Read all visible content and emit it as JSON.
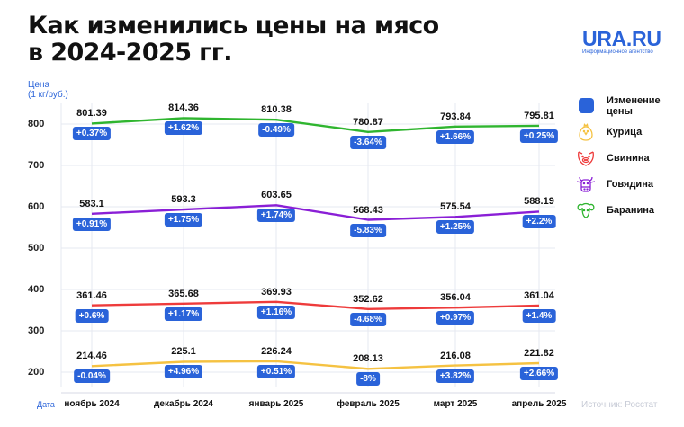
{
  "header": {
    "title_line1": "Как изменились цены на мясо",
    "title_line2": "в 2024-2025 гг."
  },
  "logo": {
    "name": "URA.RU",
    "tagline": "Информационное агентство"
  },
  "axis": {
    "y_label_line1": "Цена",
    "y_label_line2": "(1 кг/руб.)",
    "x_label": "Дата",
    "y_ticks": [
      "800",
      "700",
      "600",
      "500",
      "400",
      "300",
      "200"
    ],
    "x_ticks": [
      "ноябрь 2024",
      "декабрь 2024",
      "январь 2025",
      "февраль 2025",
      "март 2025",
      "апрель 2025"
    ]
  },
  "source": "Источник: Росстат",
  "legend": {
    "items": [
      {
        "label": "Изменение цены",
        "icon": "square-icon",
        "color": "#2a63d9"
      },
      {
        "label": "Курица",
        "icon": "chicken-icon",
        "color": "#f5c242"
      },
      {
        "label": "Свинина",
        "icon": "pig-icon",
        "color": "#ee3b3b"
      },
      {
        "label": "Говядина",
        "icon": "cow-icon",
        "color": "#8a1fd6"
      },
      {
        "label": "Баранина",
        "icon": "ram-icon",
        "color": "#2fb52f"
      }
    ]
  },
  "chart_data": {
    "type": "line",
    "title": "Как изменились цены на мясо в 2024-2025 гг.",
    "xlabel": "Дата",
    "ylabel": "Цена (1 кг/руб.)",
    "categories": [
      "ноябрь 2024",
      "декабрь 2024",
      "январь 2025",
      "февраль 2025",
      "март 2025",
      "апрель 2025"
    ],
    "ylim": [
      180,
      830
    ],
    "yticks": [
      200,
      300,
      400,
      500,
      600,
      700,
      800
    ],
    "grid": true,
    "legend_position": "right",
    "series": [
      {
        "name": "Баранина",
        "color": "#2fb52f",
        "values": [
          801.39,
          814.36,
          810.38,
          780.87,
          793.84,
          795.81
        ],
        "labels": [
          "801.39",
          "814.36",
          "810.38",
          "780.87",
          "793.84",
          "795.81"
        ],
        "changes": [
          "+0.37%",
          "+1.62%",
          "-0.49%",
          "-3.64%",
          "+1.66%",
          "+0.25%"
        ]
      },
      {
        "name": "Говядина",
        "color": "#8a1fd6",
        "values": [
          583.1,
          593.3,
          603.65,
          568.43,
          575.54,
          588.19
        ],
        "labels": [
          "583.1",
          "593.3",
          "603.65",
          "568.43",
          "575.54",
          "588.19"
        ],
        "changes": [
          "+0.91%",
          "+1.75%",
          "+1.74%",
          "-5.83%",
          "+1.25%",
          "+2.2%"
        ]
      },
      {
        "name": "Свинина",
        "color": "#ee3b3b",
        "values": [
          361.46,
          365.68,
          369.93,
          352.62,
          356.04,
          361.04
        ],
        "labels": [
          "361.46",
          "365.68",
          "369.93",
          "352.62",
          "356.04",
          "361.04"
        ],
        "changes": [
          "+0.6%",
          "+1.17%",
          "+1.16%",
          "-4.68%",
          "+0.97%",
          "+1.4%"
        ]
      },
      {
        "name": "Курица",
        "color": "#f5c242",
        "values": [
          214.46,
          225.1,
          226.24,
          208.13,
          216.08,
          221.82
        ],
        "labels": [
          "214.46",
          "225.1",
          "226.24",
          "208.13",
          "216.08",
          "221.82"
        ],
        "changes": [
          "-0.04%",
          "+4.96%",
          "+0.51%",
          "-8%",
          "+3.82%",
          "+2.66%"
        ]
      }
    ]
  }
}
